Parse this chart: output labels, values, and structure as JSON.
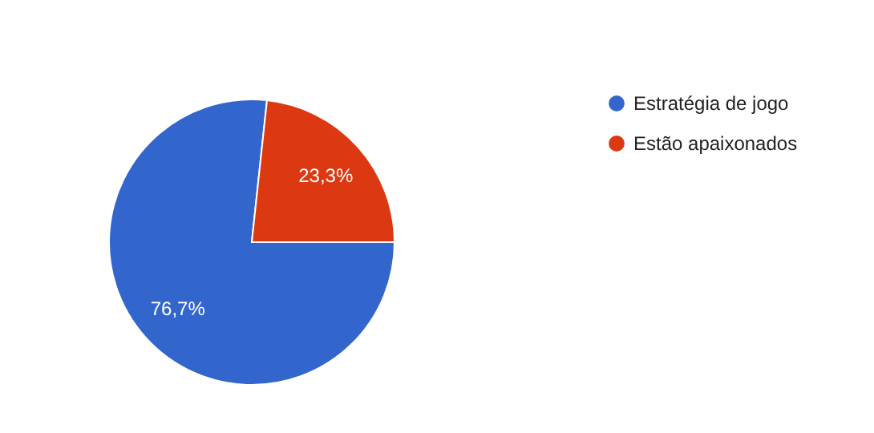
{
  "chart_data": {
    "type": "pie",
    "categories": [
      "Estratégia de jogo",
      "Estão apaixonados"
    ],
    "values": [
      76.7,
      23.3
    ],
    "colors": [
      "#3366cc",
      "#dc3912"
    ],
    "value_labels": [
      "76,7%",
      "23,3%"
    ],
    "legend": "right"
  }
}
